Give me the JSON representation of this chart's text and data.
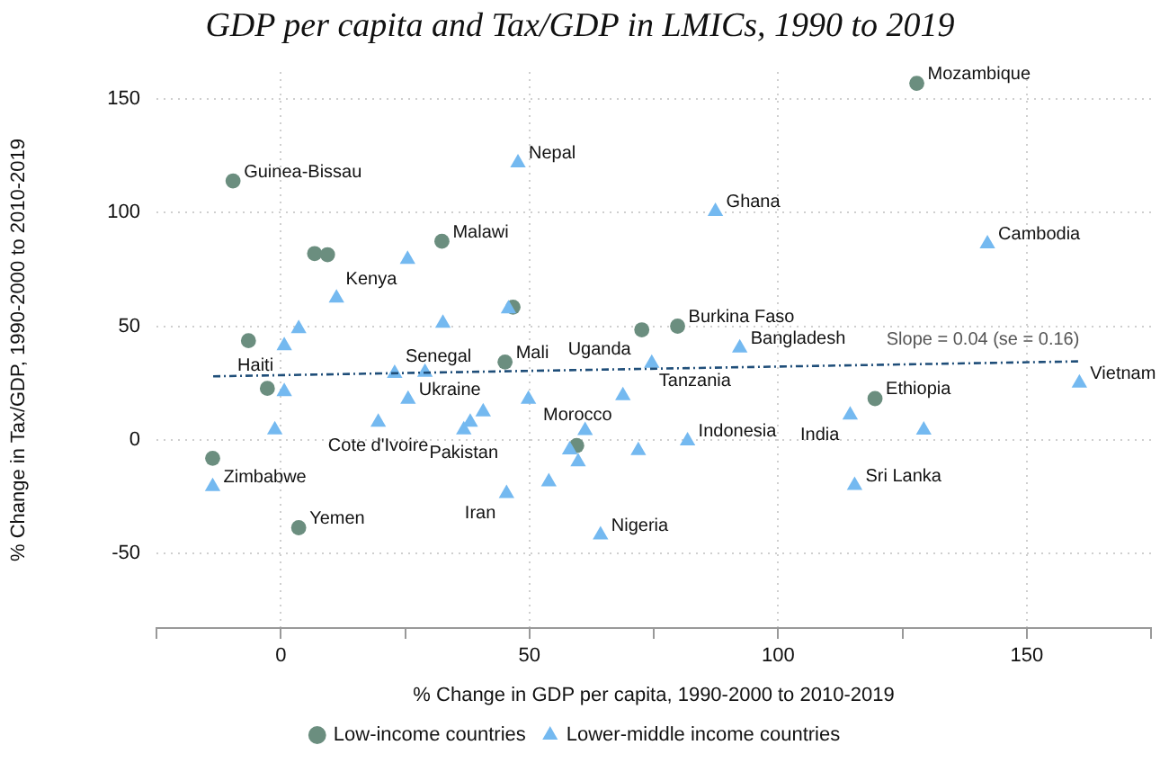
{
  "chart_data": {
    "type": "scatter",
    "title": "GDP per capita and Tax/GDP in LMICs, 1990 to 2019",
    "xlabel": "% Change in GDP per capita, 1990-2000 to 2010-2019",
    "ylabel": "% Change in Tax/GDP, 1990-2000 to 2010-2019",
    "xlim": [
      -25,
      175
    ],
    "xticks": [
      {
        "value": -25,
        "label": null
      },
      0,
      {
        "value": 25,
        "label": null
      },
      50,
      {
        "value": 75,
        "label": null
      },
      100,
      {
        "value": 125,
        "label": null
      },
      150,
      {
        "value": 175,
        "label": null
      }
    ],
    "ylim": [
      -83,
      162
    ],
    "yticks": [
      -50,
      0,
      50,
      100,
      150
    ],
    "grid": true,
    "legend": "bottom",
    "series": [
      {
        "name": "Low-income countries",
        "type": "scatter",
        "marker": "circle",
        "color": "#6b8e7f",
        "x": [
          127.9,
          -9.6,
          32.4,
          6.8,
          9.4,
          46.7,
          -6.5,
          72.6,
          79.8,
          45.1,
          -2.7,
          119.5,
          -13.7,
          3.6,
          59.5
        ],
        "values": [
          157,
          114,
          87.4,
          82,
          81.5,
          58.4,
          43.6,
          48.4,
          50,
          34.2,
          22.6,
          18.1,
          -8.2,
          -38.8,
          -2.6
        ]
      },
      {
        "name": "Lower-middle income countries",
        "type": "scatter",
        "marker": "triangle",
        "color": "#74b9f0",
        "x": [
          47.7,
          25.5,
          11.2,
          45.8,
          3.6,
          32.6,
          0.7,
          22.9,
          29,
          74.6,
          0.7,
          25.6,
          49.8,
          68.8,
          40.7,
          38.1,
          36.8,
          19.6,
          -1.2,
          61.2,
          58.1,
          59.8,
          71.9,
          53.9,
          45.4,
          64.3,
          -13.7,
          92.3,
          87.4,
          142.1,
          160.6,
          114.5,
          129.3,
          81.8,
          115.4
        ],
        "values": [
          122,
          79.4,
          62.4,
          57.6,
          48.9,
          51.3,
          41.4,
          29.2,
          29.7,
          33.7,
          21.2,
          17.8,
          17.8,
          19.4,
          12.2,
          7.7,
          4.3,
          7.7,
          4.3,
          4,
          -4.5,
          -9.8,
          -4.8,
          -18.6,
          -23.7,
          -42,
          -20.7,
          40.4,
          100.6,
          86.3,
          24.9,
          10.9,
          4.2,
          -0.5,
          -20.2
        ]
      },
      {
        "type": "line",
        "marker": "none",
        "line_style": "dashed",
        "color": "#1f4e79",
        "x": [
          -13.6,
          160.6
        ],
        "values": [
          27.9,
          34.5
        ]
      }
    ],
    "annotations": [
      {
        "text": "Mozambique",
        "x": 127.9,
        "y": 157
      },
      {
        "text": "Guinea-Bissau",
        "x": -9.6,
        "y": 114
      },
      {
        "text": "Nepal",
        "x": 47.7,
        "y": 122
      },
      {
        "text": "Malawi",
        "x": 32.4,
        "y": 87.4
      },
      {
        "text": "Kenya",
        "x": 25.5,
        "y": 79.4
      },
      {
        "text": "Ghana",
        "x": 87.4,
        "y": 100.6
      },
      {
        "text": "Cambodia",
        "x": 142.1,
        "y": 86.3
      },
      {
        "text": "Uganda",
        "x": 72.6,
        "y": 48.4
      },
      {
        "text": "Burkina Faso",
        "x": 79.8,
        "y": 50
      },
      {
        "text": "Bangladesh",
        "x": 92.3,
        "y": 40.4
      },
      {
        "text": "Tanzania",
        "x": 74.6,
        "y": 33.7
      },
      {
        "text": "Haiti",
        "x": 0.7,
        "y": 41.4
      },
      {
        "text": "Mali",
        "x": 45.1,
        "y": 34.2
      },
      {
        "text": "Senegal",
        "x": 22.9,
        "y": 29.2
      },
      {
        "text": "Ukraine",
        "x": 25.6,
        "y": 17.8
      },
      {
        "text": "Morocco",
        "x": 68.8,
        "y": 19.4
      },
      {
        "text": "Ethiopia",
        "x": 119.5,
        "y": 18.1
      },
      {
        "text": "Vietnam",
        "x": 160.6,
        "y": 24.9
      },
      {
        "text": "India",
        "x": 114.5,
        "y": 10.9
      },
      {
        "text": "Cote d'Ivoire",
        "x": 19.6,
        "y": 7.7
      },
      {
        "text": "Pakistan",
        "x": 36.8,
        "y": 4.3
      },
      {
        "text": "Indonesia",
        "x": 81.8,
        "y": -0.5
      },
      {
        "text": "Zimbabwe",
        "x": -13.7,
        "y": -20.7
      },
      {
        "text": "Iran",
        "x": 45.4,
        "y": -23.7
      },
      {
        "text": "Sri Lanka",
        "x": 115.4,
        "y": -20.2
      },
      {
        "text": "Nigeria",
        "x": 64.3,
        "y": -42
      },
      {
        "text": "Yemen",
        "x": 3.6,
        "y": -38.8
      },
      {
        "text": "Slope = 0.04 (se = 0.16)",
        "x": 160.6,
        "y": 34.5
      }
    ]
  }
}
